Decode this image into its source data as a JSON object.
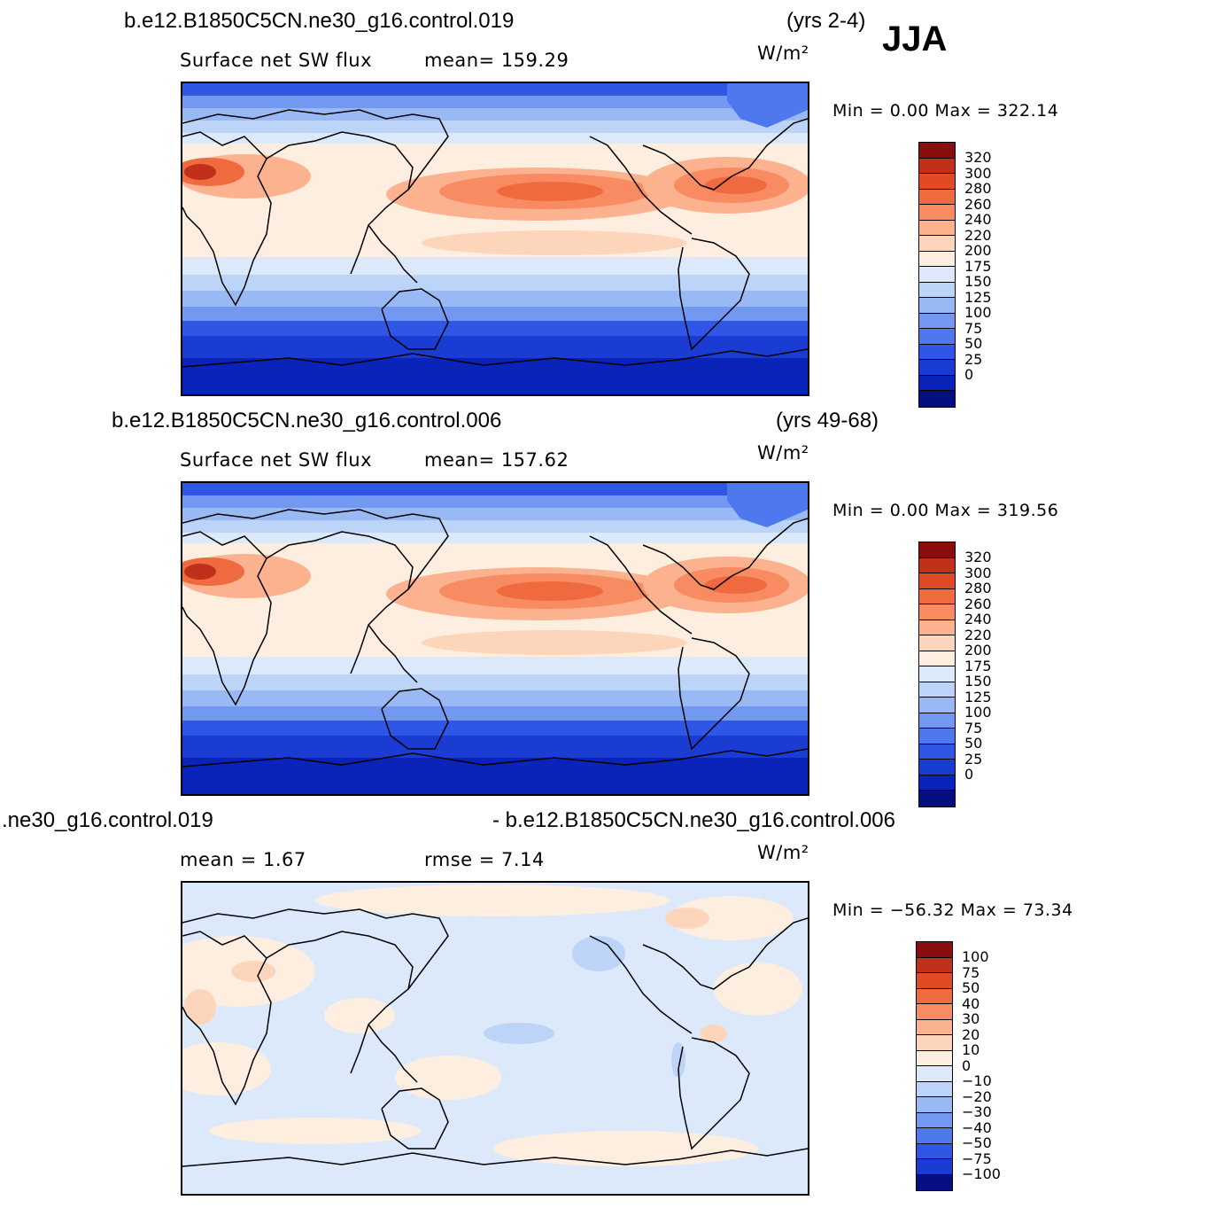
{
  "season": "JJA",
  "units": "W/m²",
  "palette_pos": [
    "#fdeee0",
    "#fdd5bb",
    "#fcb28f",
    "#f98b62",
    "#f06a40",
    "#e04a24",
    "#c0301a",
    "#8b0e0e"
  ],
  "palette_neg": [
    "#dbe9fb",
    "#bcd4f7",
    "#98b9f3",
    "#7298f1",
    "#4f78ee",
    "#2f56e4",
    "#1a3cd3",
    "#0a23b8",
    "#050f80"
  ],
  "panels": [
    {
      "case_title": "b.e12.B1850C5CN.ne30_g16.control.019",
      "years": "(yrs 2-4)",
      "left_text": "Surface  net  SW  flux",
      "right_text": "mean=  159.29",
      "min_max": "Min  =      0.00  Max  =  322.14",
      "levels": [
        "320",
        "300",
        "280",
        "260",
        "240",
        "220",
        "200",
        "175",
        "150",
        "125",
        "100",
        "75",
        "50",
        "25",
        "0"
      ],
      "fill": "absolute"
    },
    {
      "case_title": "b.e12.B1850C5CN.ne30_g16.control.006",
      "years": "(yrs 49-68)",
      "left_text": "Surface  net  SW  flux",
      "right_text": "mean=  157.62",
      "min_max": "Min  =      0.00  Max  =  319.56",
      "levels": [
        "320",
        "300",
        "280",
        "260",
        "240",
        "220",
        "200",
        "175",
        "150",
        "125",
        "100",
        "75",
        "50",
        "25",
        "0"
      ],
      "fill": "absolute"
    },
    {
      "case_title": "\u0004.ne30_g16.control.019",
      "years": "- b.e12.B1850C5CN.ne30_g16.control.006",
      "left_text": "mean  =      1.67",
      "right_text": "rmse  =      7.14",
      "min_max": "Min  = −56.32  Max  =    73.34",
      "levels": [
        "100",
        "75",
        "50",
        "40",
        "30",
        "20",
        "10",
        "0",
        "−10",
        "−20",
        "−30",
        "−40",
        "−50",
        "−75",
        "−100"
      ],
      "fill": "difference"
    }
  ]
}
